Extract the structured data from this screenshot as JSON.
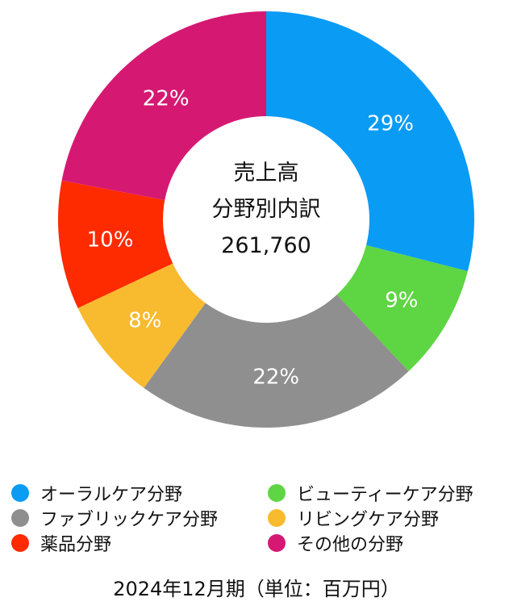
{
  "chart_data": {
    "type": "pie",
    "donut": true,
    "center_lines": [
      "売上高",
      "分野別内訳",
      "261,760"
    ],
    "slices": [
      {
        "label": "オーラルケア分野",
        "value": 29,
        "value_label": "29%",
        "color": "#0a9bf5"
      },
      {
        "label": "ビューティーケア分野",
        "value": 9,
        "value_label": "9%",
        "color": "#5ed543"
      },
      {
        "label": "ファブリックケア分野",
        "value": 22,
        "value_label": "22%",
        "color": "#8f8f8f"
      },
      {
        "label": "リビングケア分野",
        "value": 8,
        "value_label": "8%",
        "color": "#f8ba2f"
      },
      {
        "label": "薬品分野",
        "value": 10,
        "value_label": "10%",
        "color": "#fe2a00"
      },
      {
        "label": "その他の分野",
        "value": 22,
        "value_label": "22%",
        "color": "#d51973"
      }
    ],
    "legend_position": "bottom",
    "footnote": "2024年12月期（単位：百万円）"
  }
}
